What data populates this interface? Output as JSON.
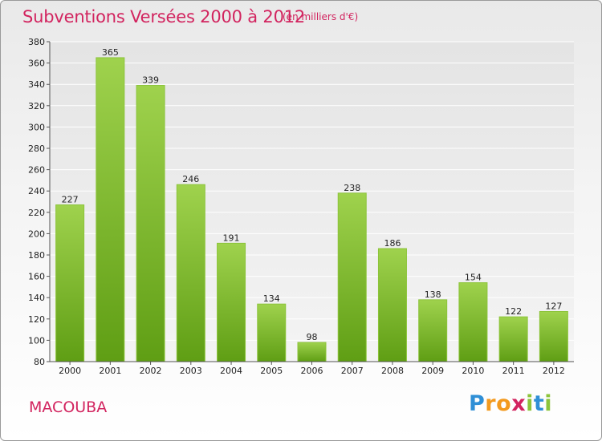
{
  "title": "Subventions Versées 2000 à 2012",
  "subtitle": "(en milliers d'€)",
  "commune": "MACOUBA",
  "logo": {
    "text": "Proxiti",
    "letters": [
      "P",
      "r",
      "o",
      "x",
      "i",
      "t",
      "i"
    ],
    "colors": [
      "#2f8fd6",
      "#f39a1e",
      "#f39a1e",
      "#d2245f",
      "#8cc43a",
      "#2f8fd6",
      "#8cc43a"
    ]
  },
  "colors": {
    "accent": "#d2245f",
    "bar_top": "#9fd24d",
    "bar_bottom": "#5f9e14",
    "bar_edge": "#8cc43a"
  },
  "chart_data": {
    "type": "bar",
    "title": "Subventions Versées 2000 à 2012",
    "subtitle": "(en milliers d'€)",
    "categories": [
      "2000",
      "2001",
      "2002",
      "2003",
      "2004",
      "2005",
      "2006",
      "2007",
      "2008",
      "2009",
      "2010",
      "2011",
      "2012"
    ],
    "values": [
      227,
      365,
      339,
      246,
      191,
      134,
      98,
      238,
      186,
      138,
      154,
      122,
      127
    ],
    "xlabel": "",
    "ylabel": "",
    "ylim": [
      80,
      380
    ],
    "yticks": [
      80,
      100,
      120,
      140,
      160,
      180,
      200,
      220,
      240,
      260,
      280,
      300,
      320,
      340,
      360,
      380
    ],
    "grid": true,
    "legend": "none"
  }
}
